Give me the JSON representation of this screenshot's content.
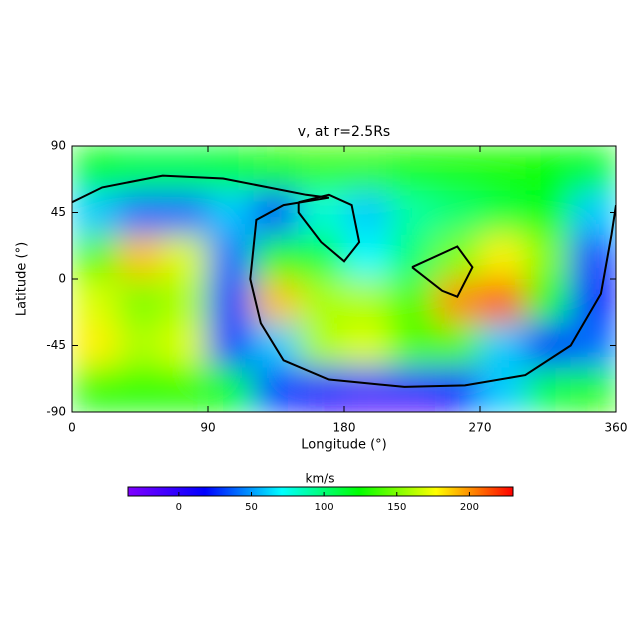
{
  "chart_data": {
    "type": "heatmap",
    "title": "v, at r=2.5Rs",
    "x_label": "Longitude (°)",
    "y_label": "Latitude (°)",
    "x": [
      15,
      45,
      75,
      105,
      135,
      165,
      195,
      225,
      255,
      285,
      315,
      345
    ],
    "y": [
      75,
      45,
      15,
      -15,
      -45,
      -75
    ],
    "values": [
      [
        120,
        110,
        110,
        115,
        130,
        135,
        135,
        130,
        130,
        130,
        125,
        120
      ],
      [
        60,
        40,
        40,
        60,
        30,
        80,
        60,
        90,
        100,
        110,
        120,
        60
      ],
      [
        140,
        190,
        170,
        40,
        130,
        110,
        70,
        100,
        150,
        180,
        150,
        30
      ],
      [
        170,
        150,
        160,
        30,
        190,
        160,
        160,
        140,
        200,
        210,
        120,
        20
      ],
      [
        180,
        160,
        170,
        30,
        60,
        160,
        170,
        140,
        140,
        60,
        20,
        40
      ],
      [
        130,
        130,
        130,
        120,
        30,
        10,
        -5,
        -5,
        20,
        60,
        110,
        130
      ]
    ],
    "xlim": [
      0,
      360
    ],
    "xticks": [
      0,
      90,
      180,
      270,
      360
    ],
    "ylim": [
      -90,
      90
    ],
    "yticks": [
      -90,
      -45,
      0,
      45,
      90
    ],
    "colorbar_label": "km/s",
    "zlim": [
      -35,
      230
    ],
    "zticks": [
      0,
      50,
      100,
      150,
      200
    ],
    "colormap": [
      "#8000ff",
      "#0000ff",
      "#00ffff",
      "#00ff00",
      "#ffff00",
      "#ff0000"
    ],
    "contour_color": "#000000",
    "contours": [
      {
        "x": [
          0,
          20,
          60,
          100,
          130,
          155,
          170,
          140,
          122,
          118,
          125,
          140,
          170,
          220,
          260,
          300,
          330,
          350,
          357,
          360
        ],
        "y": [
          52,
          62,
          70,
          68,
          62,
          57,
          55,
          50,
          40,
          0,
          -30,
          -55,
          -68,
          -73,
          -72,
          -65,
          -45,
          -10,
          30,
          50
        ]
      },
      {
        "x": [
          150,
          170,
          185,
          190,
          180,
          165,
          150,
          150
        ],
        "y": [
          52,
          57,
          50,
          25,
          12,
          25,
          45,
          52
        ]
      },
      {
        "x": [
          225,
          255,
          265,
          255,
          245,
          225
        ],
        "y": [
          8,
          22,
          8,
          -12,
          -8,
          8
        ]
      }
    ]
  }
}
